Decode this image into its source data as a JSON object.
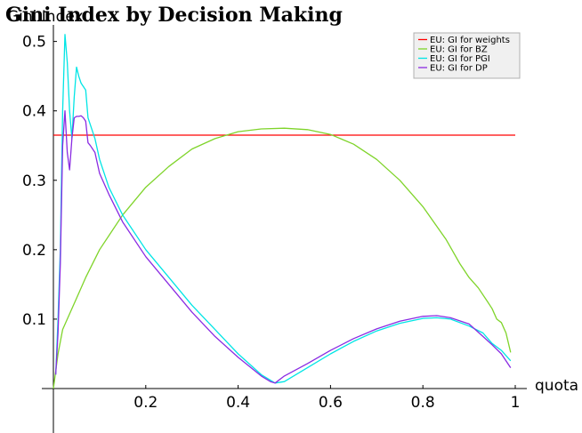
{
  "chart_data": {
    "type": "line",
    "title": "Gini Index by Decision Making",
    "xlabel": "quota",
    "ylabel": "Gini Index",
    "xlim": [
      0,
      1
    ],
    "ylim": [
      0,
      0.52
    ],
    "x_ticks": [
      "0.2",
      "0.4",
      "0.6",
      "0.8",
      "1"
    ],
    "y_ticks": [
      "0.1",
      "0.2",
      "0.3",
      "0.4",
      "0.5"
    ],
    "legend_position": "top-right",
    "series": [
      {
        "name": "EU: GI for weights",
        "color": "#ff0000",
        "x": [
          0.0,
          1.0
        ],
        "y": [
          0.365,
          0.365
        ]
      },
      {
        "name": "EU: GI for BZ",
        "color": "#7fd42a",
        "x": [
          0.0,
          0.01,
          0.02,
          0.03,
          0.05,
          0.07,
          0.1,
          0.15,
          0.2,
          0.25,
          0.3,
          0.35,
          0.4,
          0.45,
          0.5,
          0.55,
          0.6,
          0.65,
          0.7,
          0.75,
          0.8,
          0.85,
          0.88,
          0.9,
          0.92,
          0.94,
          0.95,
          0.96,
          0.97,
          0.98,
          0.99
        ],
        "y": [
          0.0,
          0.05,
          0.085,
          0.1,
          0.13,
          0.16,
          0.2,
          0.25,
          0.29,
          0.32,
          0.345,
          0.36,
          0.37,
          0.374,
          0.375,
          0.373,
          0.366,
          0.352,
          0.33,
          0.3,
          0.262,
          0.215,
          0.18,
          0.16,
          0.145,
          0.125,
          0.115,
          0.1,
          0.095,
          0.08,
          0.052
        ]
      },
      {
        "name": "EU: GI for PGI",
        "color": "#00e5e5",
        "x": [
          0.005,
          0.01,
          0.015,
          0.02,
          0.025,
          0.03,
          0.035,
          0.04,
          0.045,
          0.05,
          0.055,
          0.06,
          0.065,
          0.07,
          0.075,
          0.08,
          0.09,
          0.1,
          0.12,
          0.15,
          0.2,
          0.25,
          0.3,
          0.35,
          0.4,
          0.45,
          0.48,
          0.5,
          0.55,
          0.6,
          0.65,
          0.7,
          0.75,
          0.8,
          0.83,
          0.86,
          0.9,
          0.93,
          0.95,
          0.97,
          0.99
        ],
        "y": [
          0.02,
          0.1,
          0.2,
          0.4,
          0.51,
          0.47,
          0.4,
          0.36,
          0.42,
          0.463,
          0.45,
          0.44,
          0.435,
          0.43,
          0.39,
          0.38,
          0.36,
          0.33,
          0.29,
          0.25,
          0.2,
          0.16,
          0.12,
          0.085,
          0.05,
          0.02,
          0.008,
          0.01,
          0.03,
          0.05,
          0.068,
          0.083,
          0.094,
          0.101,
          0.102,
          0.1,
          0.09,
          0.08,
          0.065,
          0.055,
          0.04
        ]
      },
      {
        "name": "EU: GI for DP",
        "color": "#8a2be2",
        "x": [
          0.005,
          0.01,
          0.015,
          0.02,
          0.025,
          0.03,
          0.035,
          0.04,
          0.045,
          0.05,
          0.055,
          0.06,
          0.065,
          0.07,
          0.075,
          0.08,
          0.09,
          0.1,
          0.12,
          0.15,
          0.2,
          0.25,
          0.3,
          0.35,
          0.4,
          0.45,
          0.47,
          0.48,
          0.5,
          0.55,
          0.6,
          0.65,
          0.7,
          0.75,
          0.8,
          0.83,
          0.86,
          0.9,
          0.93,
          0.95,
          0.97,
          0.99
        ],
        "y": [
          0.02,
          0.08,
          0.18,
          0.35,
          0.4,
          0.34,
          0.315,
          0.36,
          0.39,
          0.392,
          0.392,
          0.393,
          0.39,
          0.385,
          0.354,
          0.35,
          0.34,
          0.31,
          0.28,
          0.24,
          0.19,
          0.15,
          0.11,
          0.075,
          0.045,
          0.018,
          0.01,
          0.008,
          0.018,
          0.036,
          0.055,
          0.072,
          0.086,
          0.097,
          0.104,
          0.105,
          0.102,
          0.093,
          0.075,
          0.063,
          0.05,
          0.03
        ]
      }
    ]
  }
}
